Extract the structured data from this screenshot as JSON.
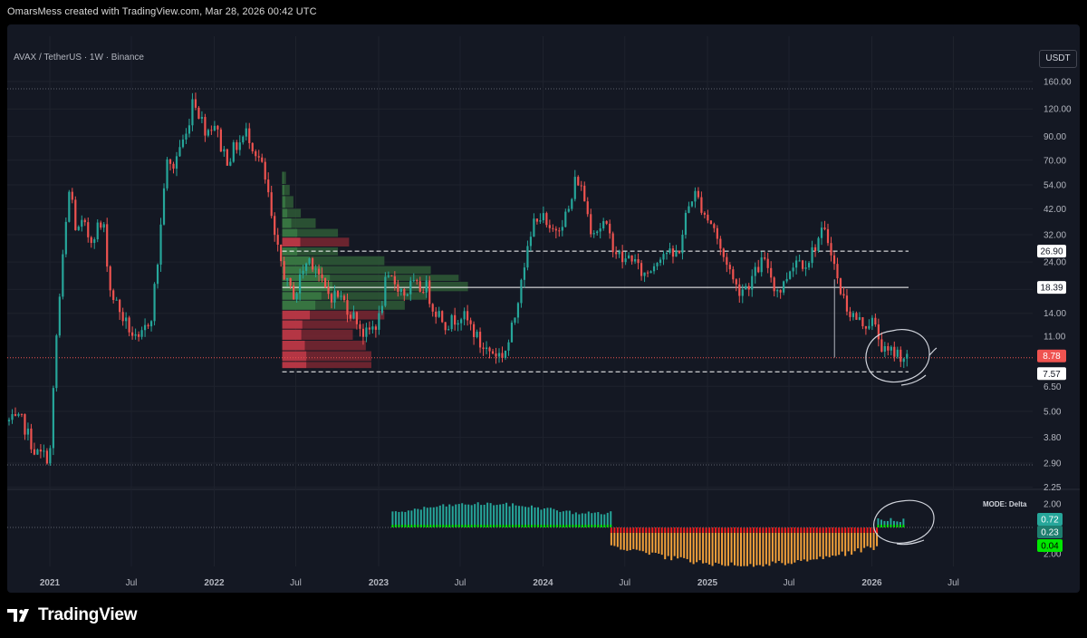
{
  "header": {
    "attribution": "OmarsMess created with TradingView.com, Mar 28, 2026 00:42 UTC"
  },
  "chart_header": {
    "symbol": "AVAX / TetherUS · 1W · Binance",
    "currency_button": "USDT"
  },
  "footer": {
    "brand": "TradingView"
  },
  "colors": {
    "up": "#26a69a",
    "down": "#ef5350",
    "background": "#141823",
    "grid": "#1e222d"
  },
  "chart_data": [
    {
      "type": "candlestick",
      "title": "AVAX / TetherUS · 1W · Binance",
      "y_scale": "log",
      "y_ticks": [
        160,
        120,
        90,
        70,
        54,
        42,
        32,
        24,
        18,
        14,
        11,
        6.5,
        5,
        3.8,
        2.9,
        2.25
      ],
      "y_tick_labels": [
        "160.00",
        "120.00",
        "90.00",
        "70.00",
        "54.00",
        "42.00",
        "32.00",
        "24.00",
        "18.00",
        "14.00",
        "11.00",
        "6.50",
        "5.00",
        "3.80",
        "2.90",
        "2.25"
      ],
      "x_ticks": [
        "2021",
        "Jul",
        "2022",
        "Jul",
        "2023",
        "Jul",
        "2024",
        "Jul",
        "2025",
        "Jul",
        "2026",
        "Jul"
      ],
      "ylim": [
        2.25,
        175
      ],
      "series": [
        {
          "points": [
            [
              "2020-11-01",
              4.5
            ],
            [
              "2020-12-01",
              3.2
            ],
            [
              "2021-01-01",
              3.1
            ],
            [
              "2021-01-15",
              10.5
            ],
            [
              "2021-02-01",
              28
            ],
            [
              "2021-02-15",
              55
            ],
            [
              "2021-03-01",
              32
            ],
            [
              "2021-03-15",
              36
            ],
            [
              "2021-04-01",
              30
            ],
            [
              "2021-04-15",
              35
            ],
            [
              "2021-05-01",
              34
            ],
            [
              "2021-05-15",
              18
            ],
            [
              "2021-06-01",
              15
            ],
            [
              "2021-06-15",
              13
            ],
            [
              "2021-07-01",
              11.5
            ],
            [
              "2021-07-15",
              10
            ],
            [
              "2021-08-01",
              12
            ],
            [
              "2021-08-15",
              14
            ],
            [
              "2021-09-01",
              28
            ],
            [
              "2021-09-15",
              68
            ],
            [
              "2021-10-01",
              64
            ],
            [
              "2021-10-15",
              80
            ],
            [
              "2021-11-01",
              92
            ],
            [
              "2021-11-15",
              140
            ],
            [
              "2021-12-01",
              110
            ],
            [
              "2021-12-15",
              95
            ],
            [
              "2022-01-01",
              105
            ],
            [
              "2022-01-15",
              82
            ],
            [
              "2022-02-01",
              70
            ],
            [
              "2022-02-15",
              80
            ],
            [
              "2022-03-01",
              85
            ],
            [
              "2022-03-15",
              95
            ],
            [
              "2022-04-01",
              78
            ],
            [
              "2022-04-15",
              68
            ],
            [
              "2022-05-01",
              48
            ],
            [
              "2022-05-15",
              30
            ],
            [
              "2022-06-01",
              23
            ],
            [
              "2022-06-15",
              18
            ],
            [
              "2022-07-01",
              17
            ],
            [
              "2022-07-15",
              22
            ],
            [
              "2022-08-01",
              25
            ],
            [
              "2022-08-15",
              23
            ],
            [
              "2022-09-01",
              18
            ],
            [
              "2022-09-15",
              17
            ],
            [
              "2022-10-01",
              17
            ],
            [
              "2022-10-15",
              16
            ],
            [
              "2022-11-01",
              14
            ],
            [
              "2022-11-15",
              13
            ],
            [
              "2022-12-01",
              11
            ],
            [
              "2023-01-01",
              13
            ],
            [
              "2023-01-15",
              19
            ],
            [
              "2023-02-01",
              20
            ],
            [
              "2023-03-01",
              17
            ],
            [
              "2023-03-15",
              19
            ],
            [
              "2023-04-01",
              18
            ],
            [
              "2023-04-15",
              19
            ],
            [
              "2023-05-01",
              15
            ],
            [
              "2023-05-15",
              14
            ],
            [
              "2023-06-01",
              12.5
            ],
            [
              "2023-06-15",
              13
            ],
            [
              "2023-07-01",
              14
            ],
            [
              "2023-07-15",
              13
            ],
            [
              "2023-08-01",
              11.5
            ],
            [
              "2023-08-15",
              10
            ],
            [
              "2023-09-01",
              9.5
            ],
            [
              "2023-10-01",
              9
            ],
            [
              "2023-10-15",
              10
            ],
            [
              "2023-11-01",
              14
            ],
            [
              "2023-11-15",
              22
            ],
            [
              "2023-12-01",
              28
            ],
            [
              "2023-12-15",
              40
            ],
            [
              "2024-01-01",
              38
            ],
            [
              "2024-01-15",
              32
            ],
            [
              "2024-02-01",
              35
            ],
            [
              "2024-02-15",
              38
            ],
            [
              "2024-03-01",
              42
            ],
            [
              "2024-03-15",
              60
            ],
            [
              "2024-04-01",
              48
            ],
            [
              "2024-04-15",
              35
            ],
            [
              "2024-05-01",
              34
            ],
            [
              "2024-05-15",
              36
            ],
            [
              "2024-06-01",
              30
            ],
            [
              "2024-06-15",
              26
            ],
            [
              "2024-07-01",
              24
            ],
            [
              "2024-07-15",
              26
            ],
            [
              "2024-08-01",
              22
            ],
            [
              "2024-08-15",
              21
            ],
            [
              "2024-09-01",
              23
            ],
            [
              "2024-09-15",
              26
            ],
            [
              "2024-10-01",
              27
            ],
            [
              "2024-10-15",
              25
            ],
            [
              "2024-11-01",
              28
            ],
            [
              "2024-11-15",
              40
            ],
            [
              "2024-12-01",
              50
            ],
            [
              "2024-12-15",
              45
            ],
            [
              "2025-01-01",
              38
            ],
            [
              "2025-01-15",
              35
            ],
            [
              "2025-02-01",
              26
            ],
            [
              "2025-02-15",
              24
            ],
            [
              "2025-03-01",
              19
            ],
            [
              "2025-03-15",
              18
            ],
            [
              "2025-04-01",
              19
            ],
            [
              "2025-04-15",
              21
            ],
            [
              "2025-05-01",
              24
            ],
            [
              "2025-05-15",
              23
            ],
            [
              "2025-06-01",
              18
            ],
            [
              "2025-06-15",
              18
            ],
            [
              "2025-07-01",
              22
            ],
            [
              "2025-07-15",
              25
            ],
            [
              "2025-08-01",
              24
            ],
            [
              "2025-08-15",
              25
            ],
            [
              "2025-09-01",
              30
            ],
            [
              "2025-09-15",
              33
            ],
            [
              "2025-10-01",
              29
            ],
            [
              "2025-10-15",
              20
            ],
            [
              "2025-11-01",
              16
            ],
            [
              "2025-11-15",
              14
            ],
            [
              "2025-12-01",
              13
            ],
            [
              "2025-12-15",
              12.5
            ],
            [
              "2026-01-01",
              13
            ],
            [
              "2026-01-15",
              11
            ],
            [
              "2026-02-01",
              9
            ],
            [
              "2026-02-15",
              9.4
            ],
            [
              "2026-03-01",
              9.2
            ],
            [
              "2026-03-15",
              8.8
            ]
          ]
        }
      ],
      "price_labels": [
        {
          "value": 26.9,
          "text": "26.90"
        },
        {
          "value": 18.39,
          "text": "18.39"
        },
        {
          "value": 8.78,
          "text": "8.78"
        },
        {
          "value": 7.57,
          "text": "7.57"
        }
      ]
    },
    {
      "type": "histogram",
      "indicator_label": "MODE: Delta",
      "y_tick_labels": [
        "2.00",
        "2.00"
      ],
      "value_labels": [
        "0.72",
        "0.23",
        "0.04"
      ],
      "segments": [
        {
          "from": "2023-02-01",
          "to": "2024-06-01",
          "sign": "positive"
        },
        {
          "from": "2024-06-01",
          "to": "2026-01-15",
          "sign": "negative"
        },
        {
          "from": "2026-01-15",
          "to": "2026-03-15",
          "sign": "positive"
        }
      ]
    }
  ]
}
